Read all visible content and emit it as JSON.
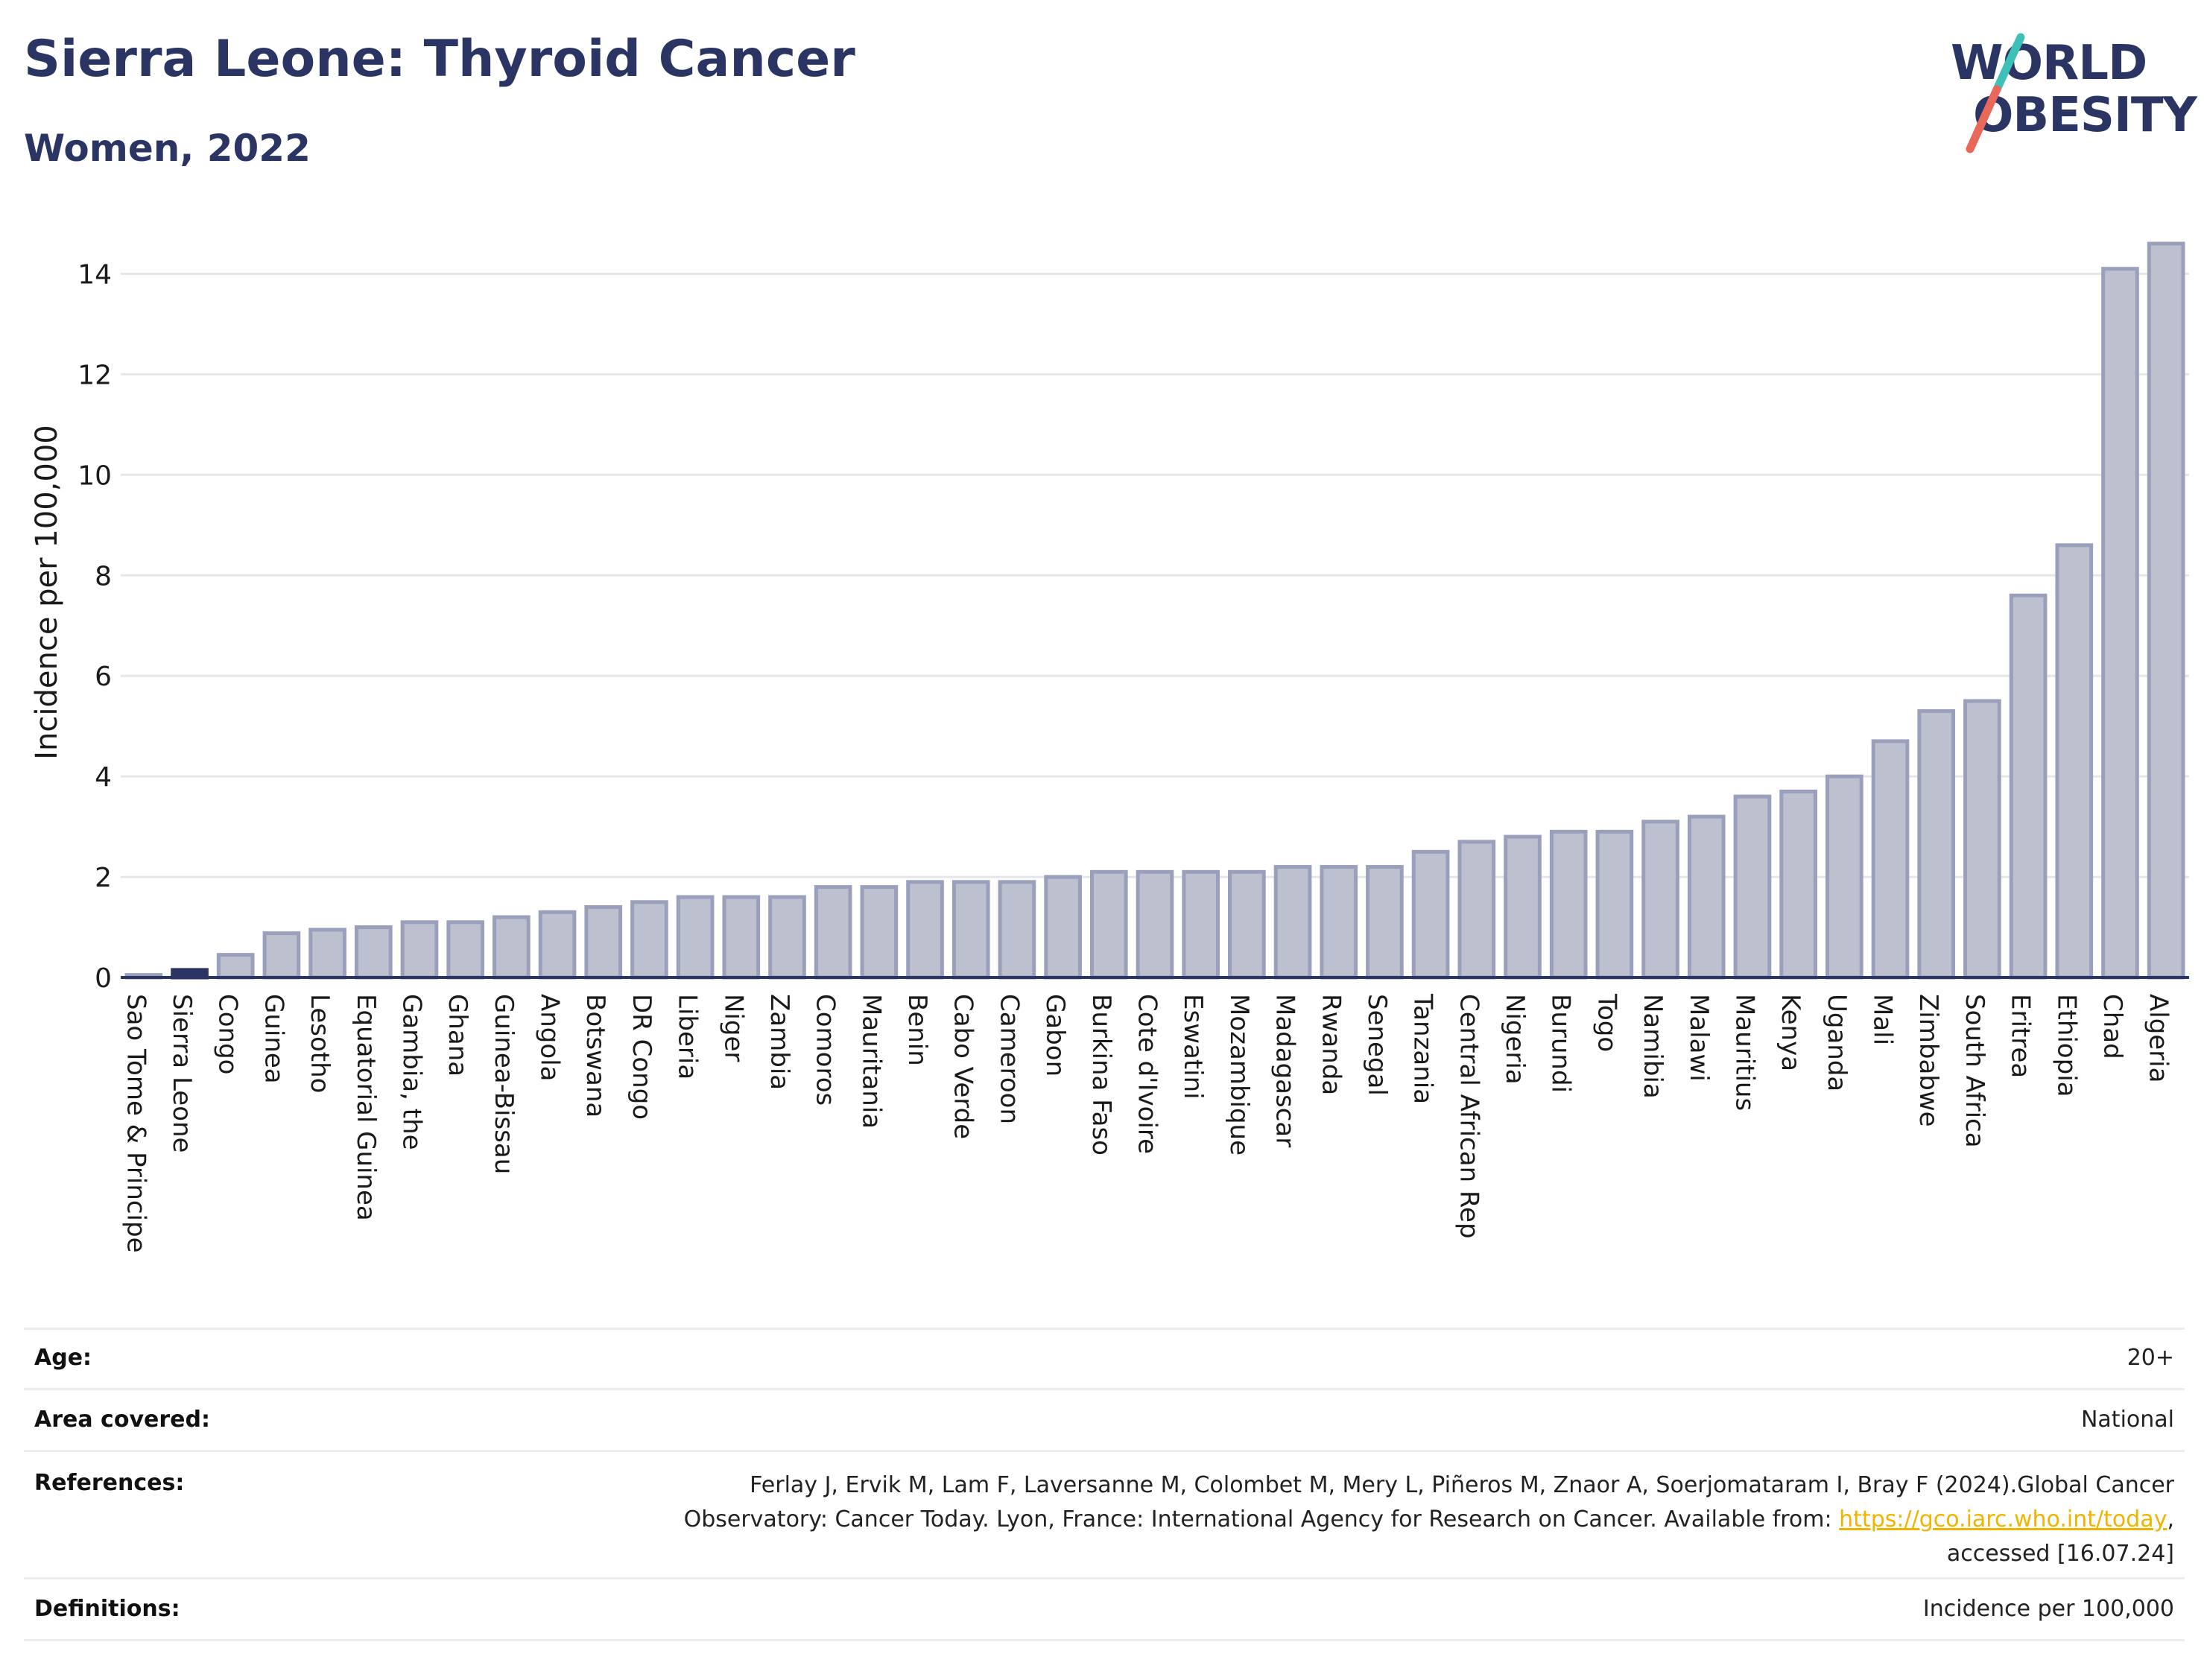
{
  "header": {
    "title": "Sierra Leone: Thyroid Cancer",
    "subtitle": "Women, 2022"
  },
  "logo": {
    "line1": "WORLD",
    "line2": "OBESITY",
    "colors": {
      "text": "#2b3564",
      "slash_top": "#3cc0b8",
      "slash_bottom": "#e8685a"
    }
  },
  "chart_data": {
    "type": "bar",
    "ylabel": "Incidence per 100,000",
    "xlabel": "",
    "ylim": [
      0,
      15
    ],
    "yticks": [
      0,
      2,
      4,
      6,
      8,
      10,
      12,
      14
    ],
    "grid": true,
    "highlight": "Sierra Leone",
    "colors": {
      "bar": "#bcc0cf",
      "bar_stroke": "#9aa0bb",
      "highlight": "#2b3564",
      "grid": "#e6e6ea"
    },
    "categories": [
      "Sao Tome & Principe",
      "Sierra Leone",
      "Congo",
      "Guinea",
      "Lesotho",
      "Equatorial Guinea",
      "Gambia, the",
      "Ghana",
      "Guinea-Bissau",
      "Angola",
      "Botswana",
      "DR Congo",
      "Liberia",
      "Niger",
      "Zambia",
      "Comoros",
      "Mauritania",
      "Benin",
      "Cabo Verde",
      "Cameroon",
      "Gabon",
      "Burkina Faso",
      "Cote d'Ivoire",
      "Eswatini",
      "Mozambique",
      "Madagascar",
      "Rwanda",
      "Senegal",
      "Tanzania",
      "Central African Rep",
      "Nigeria",
      "Burundi",
      "Togo",
      "Namibia",
      "Malawi",
      "Mauritius",
      "Kenya",
      "Uganda",
      "Mali",
      "Zimbabwe",
      "South Africa",
      "Eritrea",
      "Ethiopia",
      "Chad",
      "Algeria"
    ],
    "values": [
      0.05,
      0.15,
      0.45,
      0.88,
      0.95,
      1.0,
      1.1,
      1.1,
      1.2,
      1.3,
      1.4,
      1.5,
      1.6,
      1.6,
      1.6,
      1.8,
      1.8,
      1.9,
      1.9,
      1.9,
      2.0,
      2.1,
      2.1,
      2.1,
      2.1,
      2.2,
      2.2,
      2.2,
      2.5,
      2.7,
      2.8,
      2.9,
      2.9,
      3.1,
      3.2,
      3.6,
      3.7,
      4.0,
      4.7,
      5.3,
      5.5,
      7.6,
      8.6,
      14.1,
      14.6
    ]
  },
  "meta": {
    "age_label": "Age:",
    "age_value": "20+",
    "area_label": "Area covered:",
    "area_value": "National",
    "references_label": "References:",
    "references_line1": "Ferlay J, Ervik M, Lam F, Laversanne M, Colombet M, Mery L, Piñeros M, Znaor A, Soerjomataram I, Bray F (2024).Global Cancer",
    "references_line2_pre": "Observatory: Cancer Today. Lyon, France: International Agency for Research on Cancer. Available from: ",
    "references_link": "https://gco.iarc.who.int/today",
    "references_line2_post": ",",
    "references_line3": "accessed [16.07.24]",
    "definitions_label": "Definitions:",
    "definitions_value": "Incidence per 100,000"
  }
}
